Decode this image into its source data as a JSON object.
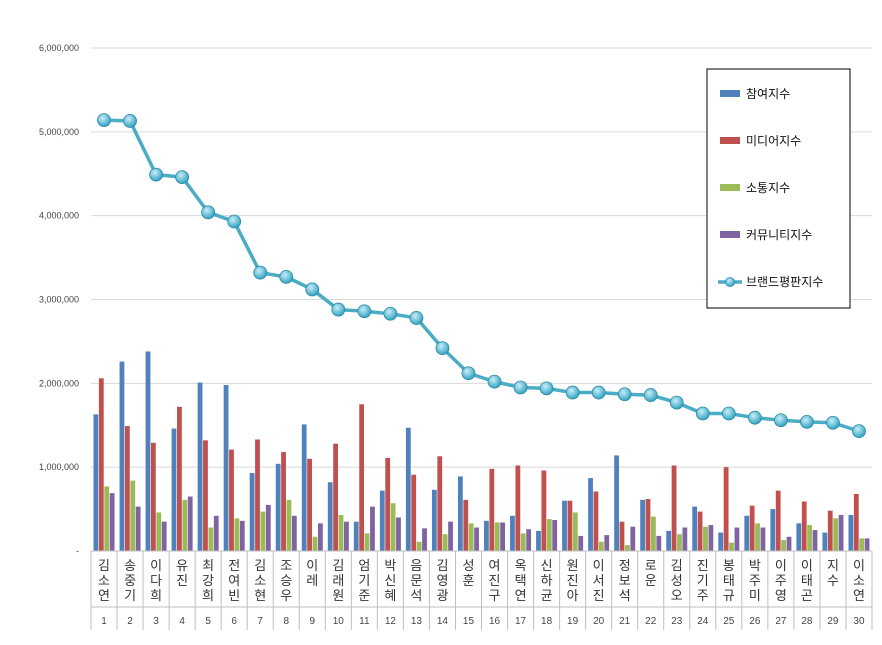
{
  "chart_data": {
    "type": "bar",
    "y_ticks": [
      "-",
      "1,000,000",
      "2,000,000",
      "3,000,000",
      "4,000,000",
      "5,000,000",
      "6,000,000"
    ],
    "ylim": [
      0,
      6000000
    ],
    "categories": [
      "김소연",
      "송중기",
      "이다희",
      "유진",
      "최강희",
      "전여빈",
      "김소현",
      "조승우",
      "이레",
      "김래원",
      "엄기준",
      "박신혜",
      "음문석",
      "김영광",
      "성훈",
      "여진구",
      "옥택연",
      "신하균",
      "원진아",
      "이서진",
      "정보석",
      "로운",
      "김성오",
      "진기주",
      "봉태규",
      "박주미",
      "이주영",
      "이태곤",
      "지수",
      "이소연"
    ],
    "ranks": [
      "1",
      "2",
      "3",
      "4",
      "5",
      "6",
      "7",
      "8",
      "9",
      "10",
      "11",
      "12",
      "13",
      "14",
      "15",
      "16",
      "17",
      "18",
      "19",
      "20",
      "21",
      "22",
      "23",
      "24",
      "25",
      "26",
      "27",
      "28",
      "29",
      "30"
    ],
    "series": [
      {
        "name": "참여지수",
        "color": "#4F81BD",
        "values": [
          1630000,
          2260000,
          2380000,
          1460000,
          2010000,
          1980000,
          930000,
          1040000,
          1510000,
          820000,
          350000,
          720000,
          1470000,
          730000,
          890000,
          360000,
          420000,
          240000,
          600000,
          870000,
          1140000,
          610000,
          240000,
          530000,
          220000,
          420000,
          500000,
          330000,
          220000,
          430000
        ]
      },
      {
        "name": "미디어지수",
        "color": "#C0504D",
        "values": [
          2060000,
          1490000,
          1290000,
          1720000,
          1320000,
          1210000,
          1330000,
          1180000,
          1100000,
          1280000,
          1750000,
          1110000,
          910000,
          1130000,
          610000,
          980000,
          1020000,
          960000,
          600000,
          710000,
          350000,
          620000,
          1020000,
          470000,
          1000000,
          540000,
          720000,
          590000,
          480000,
          680000
        ]
      },
      {
        "name": "소통지수",
        "color": "#9BBB59",
        "values": [
          770000,
          840000,
          460000,
          610000,
          280000,
          390000,
          470000,
          610000,
          170000,
          430000,
          210000,
          570000,
          110000,
          200000,
          330000,
          340000,
          210000,
          380000,
          460000,
          110000,
          70000,
          410000,
          200000,
          290000,
          100000,
          330000,
          130000,
          310000,
          390000,
          150000
        ]
      },
      {
        "name": "커뮤니티지수",
        "color": "#8064A2",
        "values": [
          690000,
          530000,
          350000,
          650000,
          420000,
          360000,
          550000,
          420000,
          330000,
          350000,
          530000,
          400000,
          270000,
          350000,
          280000,
          340000,
          260000,
          370000,
          180000,
          190000,
          290000,
          180000,
          280000,
          310000,
          280000,
          280000,
          170000,
          250000,
          430000,
          150000
        ]
      }
    ],
    "line": {
      "name": "브랜드평판지수",
      "color": "#4BACC6",
      "values": [
        5140000,
        5130000,
        4490000,
        4460000,
        4040000,
        3930000,
        3320000,
        3270000,
        3120000,
        2880000,
        2860000,
        2830000,
        2780000,
        2420000,
        2120000,
        2020000,
        1950000,
        1940000,
        1890000,
        1890000,
        1870000,
        1860000,
        1770000,
        1640000,
        1640000,
        1590000,
        1560000,
        1540000,
        1530000,
        1430000
      ]
    },
    "legend_position": "right"
  }
}
